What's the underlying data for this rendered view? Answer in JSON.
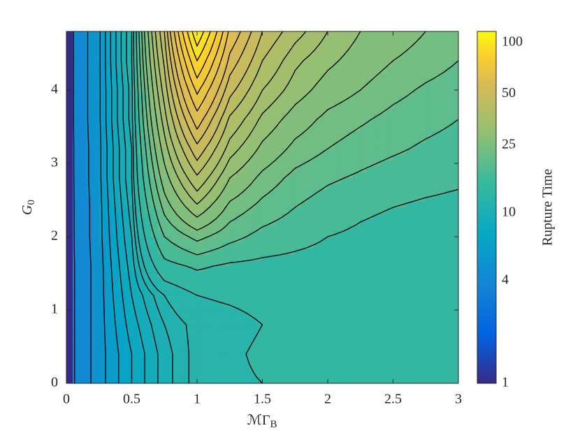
{
  "chart_data": {
    "type": "contour",
    "x_label": [
      "ℳΓ",
      "B"
    ],
    "y_label": [
      "G",
      "0"
    ],
    "colorbar_label": "Rupture Time",
    "colormap": "parula",
    "color_scale": "log",
    "clim": [
      1,
      116
    ],
    "cticks": [
      1,
      4,
      10,
      25,
      50,
      100
    ],
    "xlim": [
      0,
      3
    ],
    "xticks": [
      0,
      0.5,
      1,
      1.5,
      2,
      2.5,
      3
    ],
    "ylim": [
      0,
      4.8
    ],
    "yticks": [
      0,
      1,
      2,
      3,
      4
    ],
    "levels": [
      4,
      5,
      6,
      7,
      8,
      9,
      10,
      11,
      12,
      14,
      17,
      20,
      23,
      26,
      30,
      34,
      38,
      43,
      48,
      54,
      60,
      68,
      76,
      85,
      95,
      105
    ],
    "x": [
      0,
      0.25,
      0.5,
      0.75,
      1,
      1.25,
      1.5,
      1.75,
      2,
      2.25,
      2.5,
      2.75,
      3
    ],
    "y": [
      0,
      0.4,
      0.8,
      1.2,
      1.6,
      2.0,
      2.4,
      2.8,
      3.2,
      3.6,
      4.0,
      4.4,
      4.8
    ],
    "z": [
      [
        3.5,
        5.5,
        8,
        10.5,
        12.5,
        13.5,
        14,
        14.5,
        15,
        15.5,
        15.5,
        15.5,
        15.5
      ],
      [
        3.5,
        5.5,
        8,
        10.5,
        12.5,
        13.5,
        14.5,
        15,
        15.5,
        15.5,
        15.5,
        15.5,
        15.5
      ],
      [
        3.5,
        5.5,
        8.5,
        11,
        12.5,
        13,
        14,
        15,
        15.5,
        15.5,
        15.5,
        15.5,
        15.5
      ],
      [
        3.5,
        5.5,
        9,
        12,
        14,
        14.5,
        15,
        15.5,
        16,
        16,
        16,
        16,
        15.8
      ],
      [
        3.5,
        5.5,
        9.5,
        16,
        17.5,
        16.5,
        16.2,
        16,
        15.8,
        15.8,
        15.6,
        15.4,
        15.3
      ],
      [
        3.5,
        5.6,
        10,
        20,
        24,
        21,
        19,
        18,
        17,
        16.5,
        16,
        15.8,
        15.6
      ],
      [
        3.5,
        5.6,
        10.5,
        24,
        33,
        25,
        22,
        20,
        18.5,
        17.5,
        17,
        16.5,
        16.2
      ],
      [
        3.5,
        5.7,
        11,
        28,
        42,
        30,
        25,
        22,
        20.5,
        19.5,
        18.5,
        18,
        17.5
      ],
      [
        3.5,
        5.7,
        11,
        32,
        52,
        36,
        29,
        25,
        23,
        21.5,
        20.5,
        19.5,
        18.8
      ],
      [
        3.5,
        5.8,
        11.5,
        36,
        64,
        42,
        33,
        28,
        25,
        23.5,
        22,
        21,
        20
      ],
      [
        3.5,
        5.8,
        11.5,
        40,
        78,
        50,
        38,
        32,
        28,
        26,
        24,
        22.5,
        21.5
      ],
      [
        3.5,
        5.8,
        12,
        44,
        95,
        58,
        43,
        35,
        31,
        28,
        26,
        24.5,
        23
      ],
      [
        3.5,
        5.8,
        12,
        48,
        115,
        66,
        48,
        40,
        34,
        30,
        28,
        26,
        25
      ]
    ]
  }
}
